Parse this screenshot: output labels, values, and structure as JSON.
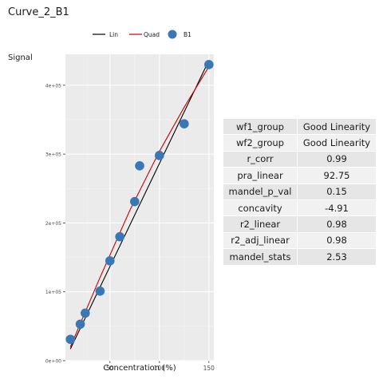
{
  "title": "Curve_2_B1",
  "chart_data": {
    "type": "scatter",
    "title": "Curve_2_B1",
    "xlabel": "Concentration (%)",
    "ylabel": "Signal",
    "xlim": [
      5,
      155
    ],
    "ylim": [
      0,
      445000
    ],
    "x_ticks": [
      50,
      100,
      150
    ],
    "x_tick_labels": [
      "50",
      "100",
      "150"
    ],
    "y_ticks": [
      0,
      100000,
      200000,
      300000,
      400000
    ],
    "y_tick_labels": [
      "0e+00",
      "1e+05",
      "2e+05",
      "3e+05",
      "4e+05"
    ],
    "grid": true,
    "legend_position": "top",
    "legend": [
      {
        "label": "Lin",
        "kind": "line",
        "color": "#000000"
      },
      {
        "label": "Quad",
        "kind": "line",
        "color": "#cc0000"
      },
      {
        "label": "B1",
        "kind": "point",
        "color": "#3a78b5"
      }
    ],
    "series": [
      {
        "name": "B1",
        "color": "#3a78b5",
        "x": [
          10,
          20,
          25,
          40,
          50,
          60,
          75,
          80,
          100,
          125,
          150
        ],
        "y": [
          31000,
          53000,
          69000,
          101000,
          145000,
          180000,
          231000,
          283000,
          298000,
          344000,
          430000
        ]
      }
    ],
    "fits": [
      {
        "name": "Lin",
        "color": "#000000",
        "x": [
          10,
          150
        ],
        "y": [
          17000,
          436000
        ]
      },
      {
        "name": "Quad",
        "color": "#cc0000",
        "x": [
          10,
          40,
          70,
          100,
          125,
          150
        ],
        "y": [
          20000,
          121000,
          218000,
          304000,
          368000,
          427000
        ]
      }
    ]
  },
  "stats_table": [
    {
      "key": "wf1_group",
      "value": "Good Linearity"
    },
    {
      "key": "wf2_group",
      "value": "Good Linearity"
    },
    {
      "key": "r_corr",
      "value": "0.99"
    },
    {
      "key": "pra_linear",
      "value": "92.75"
    },
    {
      "key": "mandel_p_val",
      "value": "0.15"
    },
    {
      "key": "concavity",
      "value": "-4.91"
    },
    {
      "key": "r2_linear",
      "value": "0.98"
    },
    {
      "key": "r2_adj_linear",
      "value": "0.98"
    },
    {
      "key": "mandel_stats",
      "value": "2.53"
    }
  ],
  "colors": {
    "panel_bg": "#ebebeb",
    "grid_major": "#ffffff",
    "grid_minor": "#f4f4f4",
    "point": "#3a78b5",
    "lin": "#000000",
    "quad": "#cc0000"
  }
}
